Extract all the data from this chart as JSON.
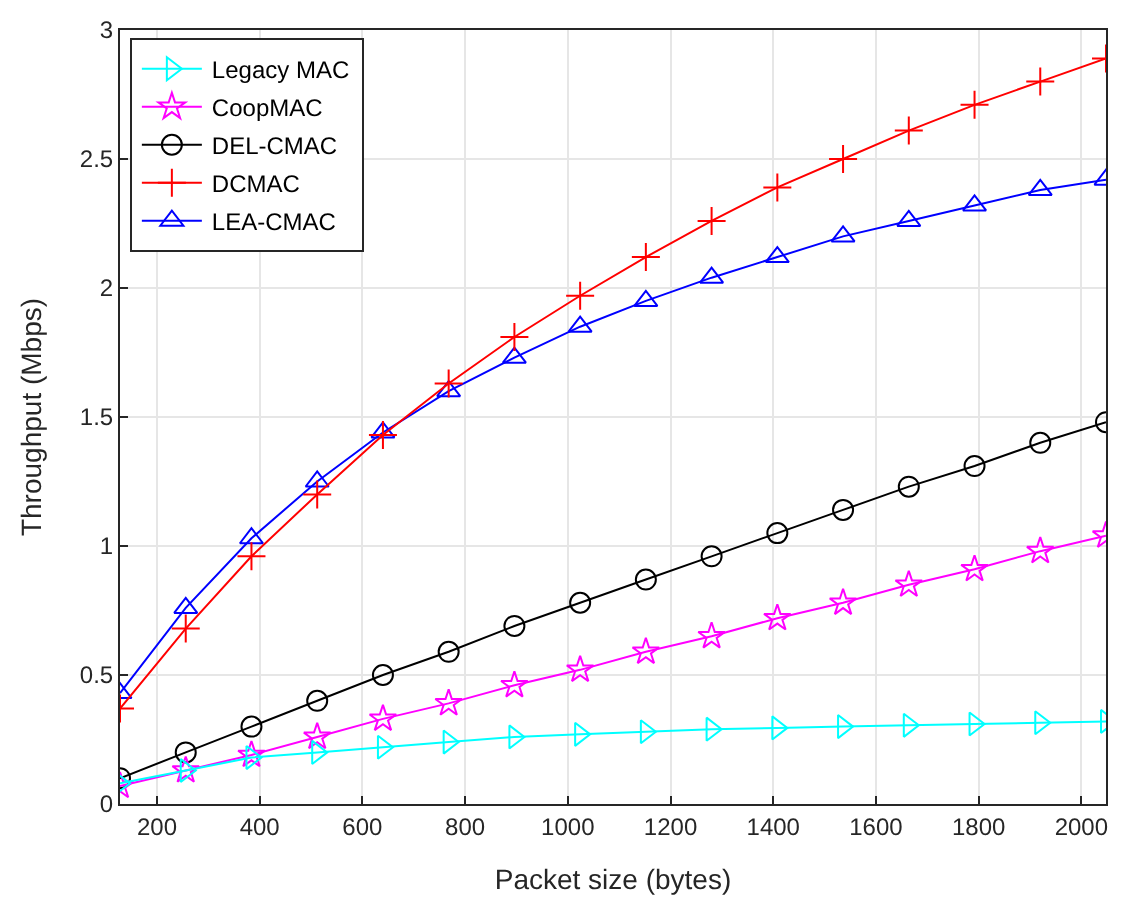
{
  "chart_data": {
    "type": "line",
    "xlabel": "Packet size (bytes)",
    "ylabel": "Throughput (Mbps)",
    "x": [
      128,
      256,
      384,
      512,
      640,
      768,
      896,
      1024,
      1152,
      1280,
      1408,
      1536,
      1664,
      1792,
      1920,
      2048
    ],
    "series": [
      {
        "name": "Legacy MAC",
        "color": "#00ffff",
        "marker": "triangle-right",
        "values": [
          0.08,
          0.13,
          0.18,
          0.2,
          0.22,
          0.24,
          0.26,
          0.27,
          0.28,
          0.29,
          0.295,
          0.3,
          0.305,
          0.31,
          0.315,
          0.32
        ]
      },
      {
        "name": "CoopMAC",
        "color": "#ff00ff",
        "marker": "star",
        "values": [
          0.07,
          0.13,
          0.19,
          0.26,
          0.33,
          0.39,
          0.46,
          0.52,
          0.59,
          0.65,
          0.72,
          0.78,
          0.85,
          0.91,
          0.98,
          1.04
        ]
      },
      {
        "name": "DEL-CMAC",
        "color": "#000000",
        "marker": "circle",
        "values": [
          0.1,
          0.2,
          0.3,
          0.4,
          0.5,
          0.59,
          0.69,
          0.78,
          0.87,
          0.96,
          1.05,
          1.14,
          1.23,
          1.31,
          1.4,
          1.48
        ]
      },
      {
        "name": "DCMAC",
        "color": "#ff0000",
        "marker": "cross",
        "values": [
          0.37,
          0.68,
          0.96,
          1.2,
          1.43,
          1.63,
          1.81,
          1.97,
          2.12,
          2.26,
          2.39,
          2.5,
          2.61,
          2.71,
          2.8,
          2.89
        ]
      },
      {
        "name": "LEA-CMAC",
        "color": "#0000ff",
        "marker": "triangle",
        "values": [
          0.43,
          0.76,
          1.03,
          1.25,
          1.44,
          1.6,
          1.73,
          1.85,
          1.95,
          2.04,
          2.12,
          2.2,
          2.26,
          2.32,
          2.38,
          2.42
        ]
      }
    ],
    "xlim": [
      128,
      2048
    ],
    "xticks": [
      200,
      400,
      600,
      800,
      1000,
      1200,
      1400,
      1600,
      1800,
      2000
    ],
    "ylim": [
      0,
      3
    ],
    "yticks": [
      0,
      0.5,
      1,
      1.5,
      2,
      2.5,
      3
    ],
    "grid": true,
    "legend": "top left",
    "line_style": "solid"
  }
}
